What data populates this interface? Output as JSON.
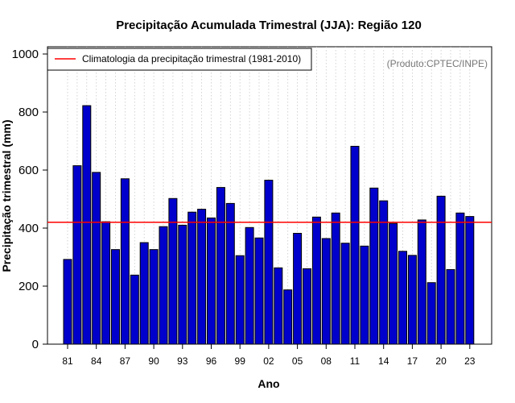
{
  "colors": {
    "bar": "#0000cc",
    "bar_stroke": "#000000",
    "climatology": "#ff0000",
    "grid": "#c8c8c8",
    "watermark": "#777777"
  },
  "chart_data": {
    "type": "bar",
    "title": "Precipitação Acumulada Trimestral (JJA): Região 120",
    "xlabel": "Ano",
    "ylabel": "Precipitação trimestral (mm)",
    "ylim": [
      0,
      1000
    ],
    "yticks": [
      0,
      200,
      400,
      600,
      800,
      1000
    ],
    "grid": "vertical dotted lines at each year",
    "legend_position": "top-left",
    "source_label": "(Produto:CPTEC/INPE)",
    "years": [
      1981,
      1982,
      1983,
      1984,
      1985,
      1986,
      1987,
      1988,
      1989,
      1990,
      1991,
      1992,
      1993,
      1994,
      1995,
      1996,
      1997,
      1998,
      1999,
      2000,
      2001,
      2002,
      2003,
      2004,
      2005,
      2006,
      2007,
      2008,
      2009,
      2010,
      2011,
      2012,
      2013,
      2014,
      2015,
      2016,
      2017,
      2018,
      2019,
      2020,
      2021,
      2022,
      2023
    ],
    "values": [
      292,
      615,
      822,
      592,
      422,
      326,
      570,
      238,
      350,
      326,
      405,
      502,
      410,
      455,
      465,
      435,
      540,
      485,
      305,
      402,
      366,
      565,
      263,
      187,
      382,
      260,
      438,
      364,
      452,
      348,
      682,
      338,
      538,
      494,
      416,
      320,
      306,
      428,
      212,
      510,
      257,
      452,
      440
    ],
    "xticks": [
      {
        "year": 1981,
        "label": "81"
      },
      {
        "year": 1984,
        "label": "84"
      },
      {
        "year": 1987,
        "label": "87"
      },
      {
        "year": 1990,
        "label": "90"
      },
      {
        "year": 1993,
        "label": "93"
      },
      {
        "year": 1996,
        "label": "96"
      },
      {
        "year": 1999,
        "label": "99"
      },
      {
        "year": 2002,
        "label": "02"
      },
      {
        "year": 2005,
        "label": "05"
      },
      {
        "year": 2008,
        "label": "08"
      },
      {
        "year": 2011,
        "label": "11"
      },
      {
        "year": 2014,
        "label": "14"
      },
      {
        "year": 2017,
        "label": "17"
      },
      {
        "year": 2020,
        "label": "20"
      },
      {
        "year": 2023,
        "label": "23"
      }
    ],
    "reference_line": {
      "value": 420,
      "label": "Climatologia da precipitação trimestral (1981-2010)"
    }
  }
}
